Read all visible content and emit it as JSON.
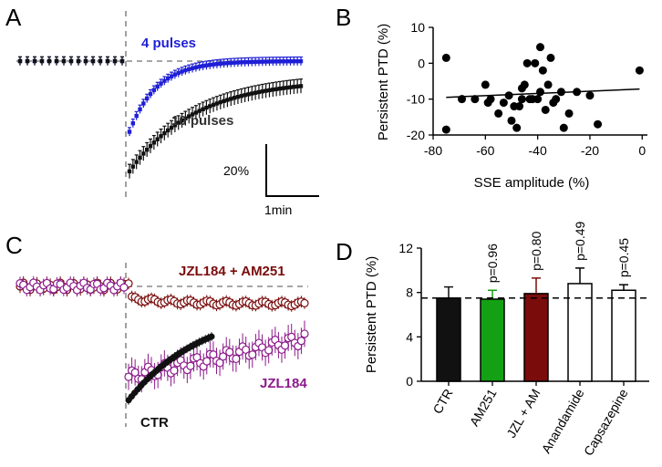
{
  "panels": {
    "A": "A",
    "B": "B",
    "C": "C",
    "D": "D"
  },
  "colors": {
    "blue": "#1f1fd6",
    "black": "#111111",
    "dark_red": "#7a0c0c",
    "purple": "#8b1a8b",
    "green": "#14a014",
    "white": "#ffffff",
    "dash": "#888888"
  },
  "chart_data": [
    {
      "panel": "A",
      "type": "line",
      "title": "",
      "annotations": {
        "scale_y": "20%",
        "scale_x": "1min"
      },
      "series": [
        {
          "name": "4 pulses",
          "color": "#1f1fd6",
          "pre": {
            "n": 15,
            "level": 0
          },
          "post": {
            "n": 50,
            "start": -50,
            "tau": 0.16,
            "error": 3
          }
        },
        {
          "name": "10 pulses",
          "color": "#111111",
          "pre": {
            "n": 15,
            "level": 0
          },
          "post": {
            "n": 50,
            "start": -78,
            "tau": 0.38,
            "plateau": -13,
            "error": 5
          }
        }
      ]
    },
    {
      "panel": "B",
      "type": "scatter",
      "xlabel": "SSE amplitude (%)",
      "ylabel": "Persistent PTD (%)",
      "xlim": [
        -80,
        2
      ],
      "ylim": [
        -20,
        10
      ],
      "xticks": [
        "-80",
        "-60",
        "-40",
        "-20",
        "0"
      ],
      "yticks": [
        "-20",
        "-10",
        "0",
        "10"
      ],
      "x": [
        -75,
        -75,
        -69,
        -64,
        -60,
        -59,
        -58,
        -55,
        -53,
        -51,
        -50,
        -49,
        -48,
        -47,
        -46,
        -46,
        -45,
        -44,
        -43,
        -42,
        -41,
        -40,
        -39,
        -39,
        -38,
        -37,
        -36,
        -35,
        -34,
        -33,
        -31,
        -30,
        -28,
        -25,
        -20,
        -17,
        -1
      ],
      "y": [
        1.5,
        -18.5,
        -10,
        -10,
        -6,
        -11,
        -10,
        -14,
        -11,
        -9,
        -16,
        -12,
        -18,
        -12,
        -7,
        -10,
        -6,
        0,
        -10,
        -10,
        0,
        -10,
        4.5,
        -8,
        -2,
        -13,
        -6,
        1.5,
        -11,
        -10,
        -8,
        -18,
        -14,
        -8,
        -9,
        -17,
        -2
      ],
      "fit": {
        "x1": -75,
        "y1": -9.5,
        "x2": -1,
        "y2": -7.2
      }
    },
    {
      "panel": "C",
      "type": "line",
      "series": [
        {
          "name": "JZL184 + AM251",
          "color": "#7a0c0c",
          "marker": "open-circle",
          "pre": {
            "n": 32,
            "level": 0
          },
          "post": {
            "n": 55,
            "start": -8,
            "plateau": -12,
            "tau": 0.25,
            "error": 4
          }
        },
        {
          "name": "JZL184",
          "color": "#8b1a8b",
          "marker": "open-circle",
          "pre": {
            "n": 32,
            "level": 0
          },
          "post": {
            "n": 55,
            "start": -62,
            "plateau": -36,
            "tau": 0.9,
            "error": 9
          }
        },
        {
          "name": "CTR",
          "color": "#111111",
          "marker": "filled-circle",
          "pre": {
            "n": 0,
            "level": 0
          },
          "post": {
            "n": 28,
            "start": -78,
            "plateau": -13,
            "tau": 0.45,
            "error": 3
          }
        }
      ]
    },
    {
      "panel": "D",
      "type": "bar",
      "ylabel": "Persistent PTD (%)",
      "ylim": [
        0,
        12
      ],
      "yticks": [
        "0",
        "4",
        "8",
        "12"
      ],
      "reference_line": 7.5,
      "categories": [
        "CTR",
        "AM251",
        "JZL + AM",
        "Anandamide",
        "Capsazepine"
      ],
      "values": [
        7.5,
        7.4,
        7.9,
        8.8,
        8.2
      ],
      "errors": [
        1.0,
        0.8,
        1.4,
        1.4,
        0.5
      ],
      "colors": [
        "#111111",
        "#14a014",
        "#7a0c0c",
        "#ffffff",
        "#ffffff"
      ],
      "pvalues": [
        "",
        "p=0.96",
        "p=0.80",
        "p=0.49",
        "p=0.45"
      ]
    }
  ]
}
